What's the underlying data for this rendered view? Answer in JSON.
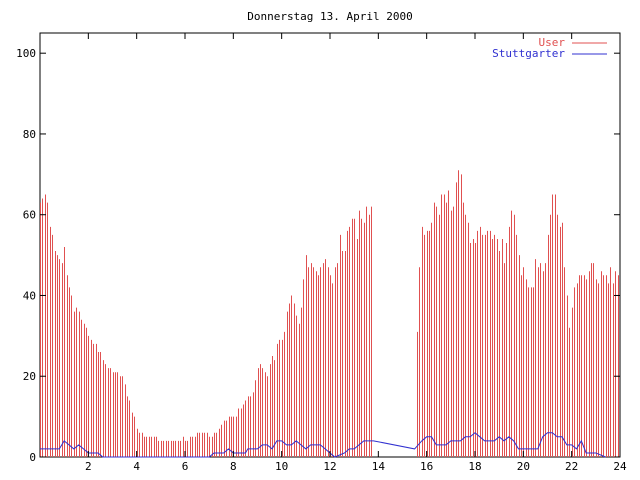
{
  "chart_data": {
    "type": "bar",
    "title": "Donnerstag 13. April 2000",
    "xlabel": "",
    "ylabel": "",
    "xlim": [
      0,
      24
    ],
    "ylim": [
      0,
      105
    ],
    "x_ticks": [
      "2",
      "4",
      "6",
      "8",
      "10",
      "12",
      "14",
      "16",
      "18",
      "20",
      "22",
      "24"
    ],
    "y_ticks": [
      "0",
      "20",
      "40",
      "60",
      "80",
      "100"
    ],
    "grid": false,
    "legend": "top-right",
    "colors": {
      "user": "#e05050",
      "stuttgarter": "#3030d0",
      "axis": "#000000"
    },
    "series": [
      {
        "name": "User",
        "type": "impulse",
        "points": [
          [
            0.0,
            63
          ],
          [
            0.1,
            64
          ],
          [
            0.2,
            65
          ],
          [
            0.3,
            63
          ],
          [
            0.4,
            57
          ],
          [
            0.5,
            55
          ],
          [
            0.6,
            51
          ],
          [
            0.7,
            50
          ],
          [
            0.8,
            49
          ],
          [
            0.9,
            48
          ],
          [
            1.0,
            52
          ],
          [
            1.1,
            45
          ],
          [
            1.2,
            42
          ],
          [
            1.3,
            40
          ],
          [
            1.4,
            36
          ],
          [
            1.5,
            37
          ],
          [
            1.6,
            36
          ],
          [
            1.7,
            34
          ],
          [
            1.8,
            33
          ],
          [
            1.9,
            32
          ],
          [
            2.0,
            30
          ],
          [
            2.1,
            29
          ],
          [
            2.2,
            28
          ],
          [
            2.3,
            28
          ],
          [
            2.4,
            26
          ],
          [
            2.5,
            26
          ],
          [
            2.6,
            24
          ],
          [
            2.7,
            23
          ],
          [
            2.8,
            22
          ],
          [
            2.9,
            22
          ],
          [
            3.0,
            21
          ],
          [
            3.1,
            21
          ],
          [
            3.2,
            21
          ],
          [
            3.3,
            20
          ],
          [
            3.4,
            20
          ],
          [
            3.5,
            18
          ],
          [
            3.6,
            15
          ],
          [
            3.7,
            14
          ],
          [
            3.8,
            11
          ],
          [
            3.9,
            10
          ],
          [
            4.0,
            7
          ],
          [
            4.1,
            6
          ],
          [
            4.2,
            6
          ],
          [
            4.3,
            5
          ],
          [
            4.4,
            5
          ],
          [
            4.5,
            5
          ],
          [
            4.6,
            5
          ],
          [
            4.7,
            5
          ],
          [
            4.8,
            5
          ],
          [
            4.9,
            4
          ],
          [
            5.0,
            4
          ],
          [
            5.1,
            4
          ],
          [
            5.2,
            4
          ],
          [
            5.3,
            4
          ],
          [
            5.4,
            4
          ],
          [
            5.5,
            4
          ],
          [
            5.6,
            4
          ],
          [
            5.7,
            4
          ],
          [
            5.8,
            4
          ],
          [
            5.9,
            5
          ],
          [
            6.0,
            4
          ],
          [
            6.1,
            4
          ],
          [
            6.2,
            5
          ],
          [
            6.3,
            5
          ],
          [
            6.4,
            5
          ],
          [
            6.5,
            6
          ],
          [
            6.6,
            6
          ],
          [
            6.7,
            6
          ],
          [
            6.8,
            6
          ],
          [
            6.9,
            6
          ],
          [
            7.0,
            5
          ],
          [
            7.1,
            5
          ],
          [
            7.2,
            6
          ],
          [
            7.3,
            6
          ],
          [
            7.4,
            7
          ],
          [
            7.5,
            8
          ],
          [
            7.6,
            9
          ],
          [
            7.7,
            9
          ],
          [
            7.8,
            10
          ],
          [
            7.9,
            10
          ],
          [
            8.0,
            10
          ],
          [
            8.1,
            10
          ],
          [
            8.2,
            12
          ],
          [
            8.3,
            12
          ],
          [
            8.4,
            13
          ],
          [
            8.5,
            14
          ],
          [
            8.6,
            15
          ],
          [
            8.7,
            15
          ],
          [
            8.8,
            16
          ],
          [
            8.9,
            19
          ],
          [
            9.0,
            22
          ],
          [
            9.1,
            23
          ],
          [
            9.2,
            22
          ],
          [
            9.3,
            21
          ],
          [
            9.4,
            20
          ],
          [
            9.5,
            23
          ],
          [
            9.6,
            25
          ],
          [
            9.7,
            24
          ],
          [
            9.8,
            28
          ],
          [
            9.9,
            29
          ],
          [
            10.0,
            29
          ],
          [
            10.1,
            31
          ],
          [
            10.2,
            36
          ],
          [
            10.3,
            38
          ],
          [
            10.4,
            40
          ],
          [
            10.5,
            38
          ],
          [
            10.6,
            35
          ],
          [
            10.7,
            33
          ],
          [
            10.8,
            37
          ],
          [
            10.9,
            44
          ],
          [
            11.0,
            50
          ],
          [
            11.1,
            47
          ],
          [
            11.2,
            48
          ],
          [
            11.3,
            47
          ],
          [
            11.4,
            46
          ],
          [
            11.5,
            45
          ],
          [
            11.6,
            47
          ],
          [
            11.7,
            48
          ],
          [
            11.8,
            49
          ],
          [
            11.9,
            47
          ],
          [
            12.0,
            45
          ],
          [
            12.1,
            43
          ],
          [
            12.2,
            47
          ],
          [
            12.3,
            48
          ],
          [
            12.4,
            55
          ],
          [
            12.5,
            51
          ],
          [
            12.6,
            51
          ],
          [
            12.7,
            56
          ],
          [
            12.8,
            57
          ],
          [
            12.9,
            59
          ],
          [
            13.0,
            59
          ],
          [
            13.1,
            54
          ],
          [
            13.2,
            61
          ],
          [
            13.3,
            59
          ],
          [
            13.4,
            58
          ],
          [
            13.5,
            62
          ],
          [
            13.6,
            60
          ],
          [
            13.7,
            62
          ],
          [
            15.6,
            31
          ],
          [
            15.7,
            47
          ],
          [
            15.8,
            57
          ],
          [
            15.9,
            55
          ],
          [
            16.0,
            56
          ],
          [
            16.1,
            56
          ],
          [
            16.2,
            58
          ],
          [
            16.3,
            63
          ],
          [
            16.4,
            62
          ],
          [
            16.5,
            60
          ],
          [
            16.6,
            65
          ],
          [
            16.7,
            65
          ],
          [
            16.8,
            63
          ],
          [
            16.9,
            66
          ],
          [
            17.0,
            61
          ],
          [
            17.1,
            62
          ],
          [
            17.2,
            68
          ],
          [
            17.3,
            71
          ],
          [
            17.4,
            70
          ],
          [
            17.5,
            63
          ],
          [
            17.6,
            60
          ],
          [
            17.7,
            58
          ],
          [
            17.8,
            53
          ],
          [
            17.9,
            54
          ],
          [
            18.0,
            53
          ],
          [
            18.1,
            56
          ],
          [
            18.2,
            57
          ],
          [
            18.3,
            55
          ],
          [
            18.4,
            55
          ],
          [
            18.5,
            56
          ],
          [
            18.6,
            56
          ],
          [
            18.7,
            54
          ],
          [
            18.8,
            55
          ],
          [
            18.9,
            54
          ],
          [
            19.0,
            51
          ],
          [
            19.1,
            54
          ],
          [
            19.2,
            48
          ],
          [
            19.3,
            53
          ],
          [
            19.4,
            57
          ],
          [
            19.5,
            61
          ],
          [
            19.6,
            60
          ],
          [
            19.7,
            55
          ],
          [
            19.8,
            50
          ],
          [
            19.9,
            45
          ],
          [
            20.0,
            47
          ],
          [
            20.1,
            44
          ],
          [
            20.2,
            42
          ],
          [
            20.3,
            42
          ],
          [
            20.4,
            42
          ],
          [
            20.5,
            49
          ],
          [
            20.6,
            47
          ],
          [
            20.7,
            48
          ],
          [
            20.8,
            46
          ],
          [
            20.9,
            48
          ],
          [
            21.0,
            55
          ],
          [
            21.1,
            60
          ],
          [
            21.2,
            65
          ],
          [
            21.3,
            65
          ],
          [
            21.4,
            60
          ],
          [
            21.5,
            57
          ],
          [
            21.6,
            58
          ],
          [
            21.7,
            47
          ],
          [
            21.8,
            40
          ],
          [
            21.9,
            32
          ],
          [
            22.0,
            37
          ],
          [
            22.1,
            42
          ],
          [
            22.2,
            43
          ],
          [
            22.3,
            45
          ],
          [
            22.4,
            45
          ],
          [
            22.5,
            45
          ],
          [
            22.6,
            44
          ],
          [
            22.7,
            46
          ],
          [
            22.8,
            48
          ],
          [
            22.9,
            48
          ],
          [
            23.0,
            44
          ],
          [
            23.1,
            43
          ],
          [
            23.2,
            46
          ],
          [
            23.3,
            45
          ],
          [
            23.4,
            45
          ],
          [
            23.5,
            43
          ],
          [
            23.6,
            47
          ],
          [
            23.7,
            43
          ],
          [
            23.8,
            46
          ],
          [
            23.9,
            45
          ]
        ]
      },
      {
        "name": "Stuttgarter",
        "type": "line",
        "points": [
          [
            0.0,
            2
          ],
          [
            0.8,
            2
          ],
          [
            1.0,
            4
          ],
          [
            1.2,
            3
          ],
          [
            1.4,
            2
          ],
          [
            1.6,
            3
          ],
          [
            1.8,
            2
          ],
          [
            2.0,
            1
          ],
          [
            2.2,
            1
          ],
          [
            2.4,
            1
          ],
          [
            2.6,
            0
          ],
          [
            7.0,
            0
          ],
          [
            7.2,
            1
          ],
          [
            7.6,
            1
          ],
          [
            7.8,
            2
          ],
          [
            8.0,
            1
          ],
          [
            8.5,
            1
          ],
          [
            8.6,
            2
          ],
          [
            9.0,
            2
          ],
          [
            9.2,
            3
          ],
          [
            9.4,
            3
          ],
          [
            9.6,
            2
          ],
          [
            9.8,
            4
          ],
          [
            10.0,
            4
          ],
          [
            10.2,
            3
          ],
          [
            10.4,
            3
          ],
          [
            10.6,
            4
          ],
          [
            10.8,
            3
          ],
          [
            11.0,
            2
          ],
          [
            11.2,
            3
          ],
          [
            11.6,
            3
          ],
          [
            11.8,
            2
          ],
          [
            12.0,
            1
          ],
          [
            12.2,
            0
          ],
          [
            12.6,
            1
          ],
          [
            12.8,
            2
          ],
          [
            13.0,
            2
          ],
          [
            13.2,
            3
          ],
          [
            13.4,
            4
          ],
          [
            13.6,
            4
          ],
          [
            13.8,
            4
          ],
          [
            15.5,
            2
          ],
          [
            15.8,
            4
          ],
          [
            16.0,
            5
          ],
          [
            16.2,
            5
          ],
          [
            16.4,
            3
          ],
          [
            16.8,
            3
          ],
          [
            17.0,
            4
          ],
          [
            17.2,
            4
          ],
          [
            17.4,
            4
          ],
          [
            17.6,
            5
          ],
          [
            17.8,
            5
          ],
          [
            18.0,
            6
          ],
          [
            18.2,
            5
          ],
          [
            18.4,
            4
          ],
          [
            18.8,
            4
          ],
          [
            19.0,
            5
          ],
          [
            19.2,
            4
          ],
          [
            19.4,
            5
          ],
          [
            19.6,
            4
          ],
          [
            19.8,
            2
          ],
          [
            20.4,
            2
          ],
          [
            20.6,
            2
          ],
          [
            20.8,
            5
          ],
          [
            21.0,
            6
          ],
          [
            21.2,
            6
          ],
          [
            21.4,
            5
          ],
          [
            21.6,
            5
          ],
          [
            21.8,
            3
          ],
          [
            22.0,
            3
          ],
          [
            22.2,
            2
          ],
          [
            22.4,
            4
          ],
          [
            22.6,
            1
          ],
          [
            23.0,
            1
          ],
          [
            23.4,
            0
          ]
        ]
      }
    ]
  }
}
